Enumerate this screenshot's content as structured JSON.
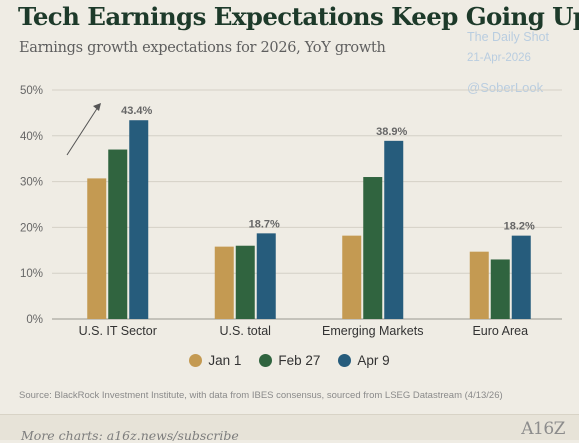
{
  "header": {
    "title": "Tech Earnings Expectations Keep Going Up",
    "subtitle": "Earnings growth expectations for 2026, YoY growth"
  },
  "watermark": {
    "line1": "The Daily Shot",
    "line2": "21-Apr-2026",
    "line3": "@SoberLook"
  },
  "colors": {
    "Jan 1": "#c49a52",
    "Feb 27": "#30643f",
    "Apr 9": "#265c7c",
    "grid": "#d4d0c6",
    "label": "#666666"
  },
  "chart_data": {
    "type": "bar",
    "categories": [
      "U.S. IT Sector",
      "U.S. total",
      "Emerging Markets",
      "Euro Area"
    ],
    "series": [
      {
        "name": "Jan 1",
        "values": [
          30.7,
          15.8,
          18.2,
          14.7
        ]
      },
      {
        "name": "Feb 27",
        "values": [
          37.0,
          16.0,
          31.0,
          13.0
        ]
      },
      {
        "name": "Apr 9",
        "values": [
          43.4,
          18.7,
          38.9,
          18.2
        ]
      }
    ],
    "data_labels": [
      "43.4%",
      "18.7%",
      "38.9%",
      "18.2%"
    ],
    "ylim": [
      0,
      50
    ],
    "yticks": [
      0,
      10,
      20,
      30,
      40,
      50
    ],
    "ytick_labels": [
      "0%",
      "10%",
      "20%",
      "30%",
      "40%",
      "50%"
    ],
    "grid": true,
    "legend_position": "bottom"
  },
  "source": "Source: BlackRock Investment Institute, with data from IBES consensus, sourced from LSEG Datastream (4/13/26)",
  "footer": {
    "more_charts": "More charts: a16z.news/subscribe",
    "logo": "A16Z"
  }
}
